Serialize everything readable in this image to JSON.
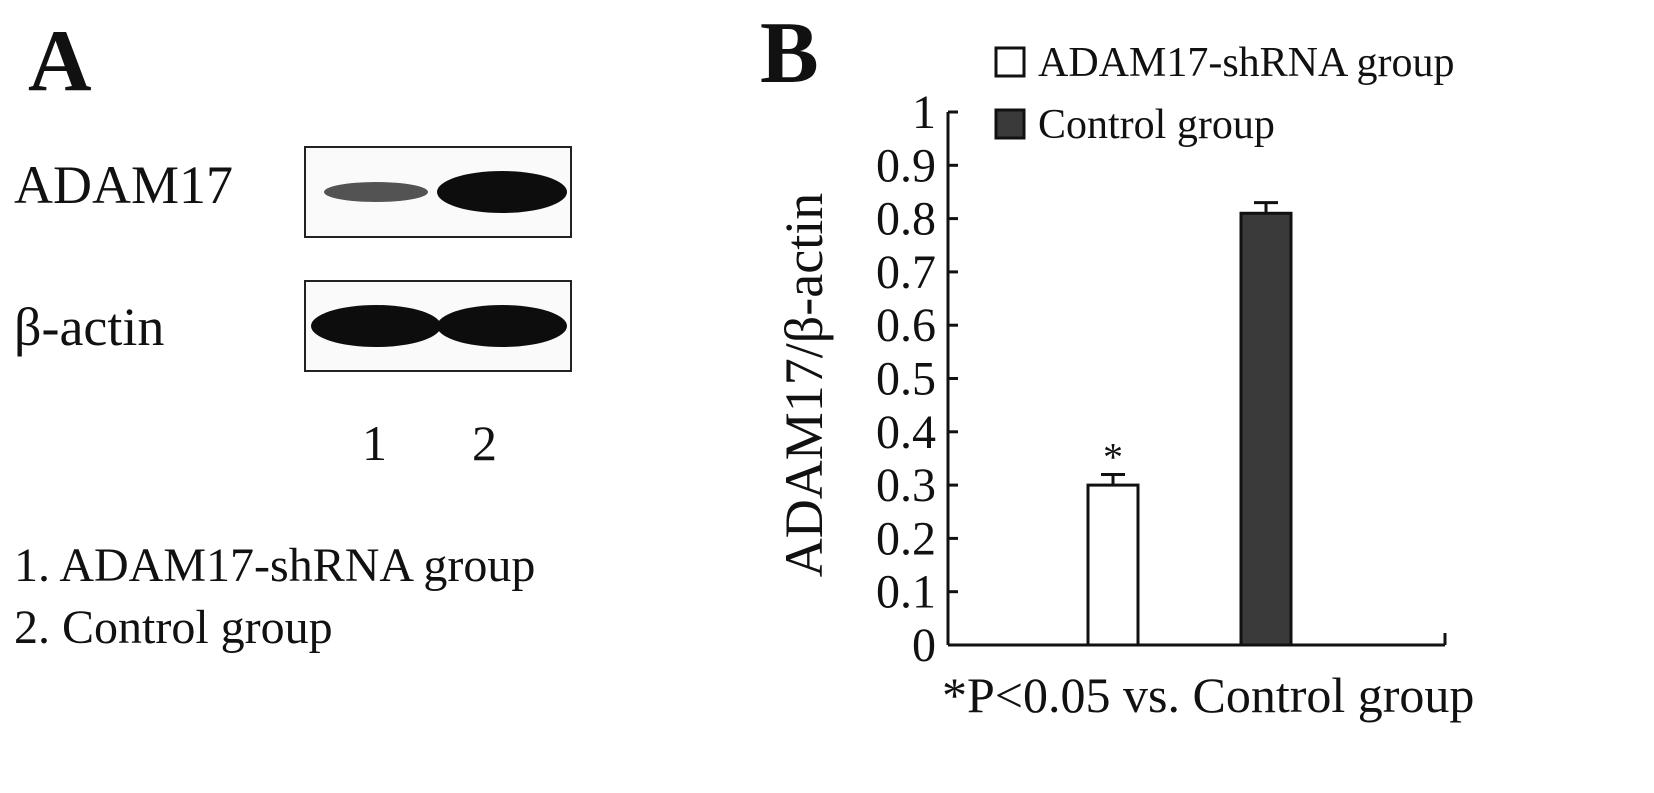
{
  "panel_a": {
    "letter": "A",
    "blots": [
      {
        "label": "ADAM17",
        "lane_intensities": [
          0.35,
          1.0
        ]
      },
      {
        "label": "β-actin",
        "lane_intensities": [
          1.0,
          1.0
        ]
      }
    ],
    "lane_numbers": [
      "1",
      "2"
    ],
    "legend": [
      "1. ADAM17-shRNA group",
      "2. Control group"
    ]
  },
  "panel_b": {
    "letter": "B",
    "footnote": "*P<0.05 vs. Control group"
  },
  "chart_data": {
    "type": "bar",
    "categories": [
      "ADAM17-shRNA group",
      "Control group"
    ],
    "values": [
      0.3,
      0.81
    ],
    "errors": [
      0.02,
      0.02
    ],
    "significance": [
      "*",
      ""
    ],
    "colors": [
      "#ffffff",
      "#3a3a3a"
    ],
    "legend": [
      {
        "name": "ADAM17-shRNA group",
        "color": "#ffffff"
      },
      {
        "name": "Control group",
        "color": "#3a3a3a"
      }
    ],
    "ylabel": "ADAM17/β-actin",
    "xlabel": "",
    "ylim": [
      0,
      1
    ],
    "yticks": [
      "0",
      "0.1",
      "0.2",
      "0.3",
      "0.4",
      "0.5",
      "0.6",
      "0.7",
      "0.8",
      "0.9",
      "1"
    ],
    "grid": false,
    "legend_position": "top-left"
  }
}
